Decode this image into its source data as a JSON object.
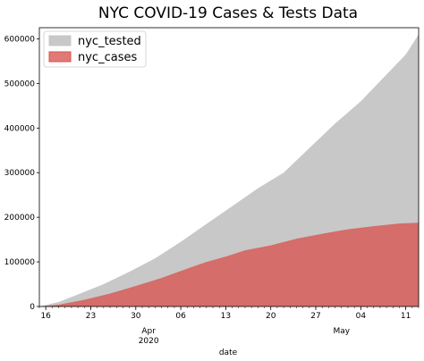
{
  "chart_data": {
    "type": "area",
    "title": "NYC COVID-19 Cases & Tests Data",
    "xlabel": "date",
    "ylabel": "",
    "x_start": "2020-03-15",
    "x_end": "2020-05-13",
    "ylim": [
      0,
      625000
    ],
    "y_ticks": [
      0,
      100000,
      200000,
      300000,
      400000,
      500000,
      600000
    ],
    "x_ticks": [
      {
        "date": "2020-03-16",
        "label": "16"
      },
      {
        "date": "2020-03-23",
        "label": "23"
      },
      {
        "date": "2020-03-30",
        "label": "30"
      },
      {
        "date": "2020-04-06",
        "label": "06"
      },
      {
        "date": "2020-04-13",
        "label": "13"
      },
      {
        "date": "2020-04-20",
        "label": "20"
      },
      {
        "date": "2020-04-27",
        "label": "27"
      },
      {
        "date": "2020-05-04",
        "label": "04"
      },
      {
        "date": "2020-05-11",
        "label": "11"
      }
    ],
    "month_labels": [
      {
        "date": "2020-04-01",
        "label": "Apr",
        "year": "2020"
      },
      {
        "date": "2020-05-01",
        "label": "May",
        "year": ""
      }
    ],
    "legend_position": "top-left",
    "series": [
      {
        "name": "nyc_tested",
        "color": "#c8c8c8",
        "points": [
          [
            "2020-03-15",
            0
          ],
          [
            "2020-03-18",
            10000
          ],
          [
            "2020-03-21",
            27000
          ],
          [
            "2020-03-25",
            50000
          ],
          [
            "2020-03-29",
            78000
          ],
          [
            "2020-04-02",
            108000
          ],
          [
            "2020-04-06",
            145000
          ],
          [
            "2020-04-10",
            185000
          ],
          [
            "2020-04-14",
            225000
          ],
          [
            "2020-04-18",
            265000
          ],
          [
            "2020-04-22",
            300000
          ],
          [
            "2020-04-26",
            355000
          ],
          [
            "2020-04-30",
            410000
          ],
          [
            "2020-05-04",
            460000
          ],
          [
            "2020-05-08",
            520000
          ],
          [
            "2020-05-11",
            565000
          ],
          [
            "2020-05-13",
            610000
          ]
        ]
      },
      {
        "name": "nyc_cases",
        "color": "#d9534f",
        "points": [
          [
            "2020-03-15",
            0
          ],
          [
            "2020-03-18",
            4000
          ],
          [
            "2020-03-22",
            15000
          ],
          [
            "2020-03-26",
            29000
          ],
          [
            "2020-03-30",
            46000
          ],
          [
            "2020-04-03",
            64000
          ],
          [
            "2020-04-07",
            85000
          ],
          [
            "2020-04-10",
            100000
          ],
          [
            "2020-04-13",
            112000
          ],
          [
            "2020-04-16",
            126000
          ],
          [
            "2020-04-20",
            137000
          ],
          [
            "2020-04-24",
            152000
          ],
          [
            "2020-04-28",
            163000
          ],
          [
            "2020-05-02",
            173000
          ],
          [
            "2020-05-06",
            180000
          ],
          [
            "2020-05-10",
            186000
          ],
          [
            "2020-05-13",
            188000
          ]
        ]
      }
    ]
  }
}
